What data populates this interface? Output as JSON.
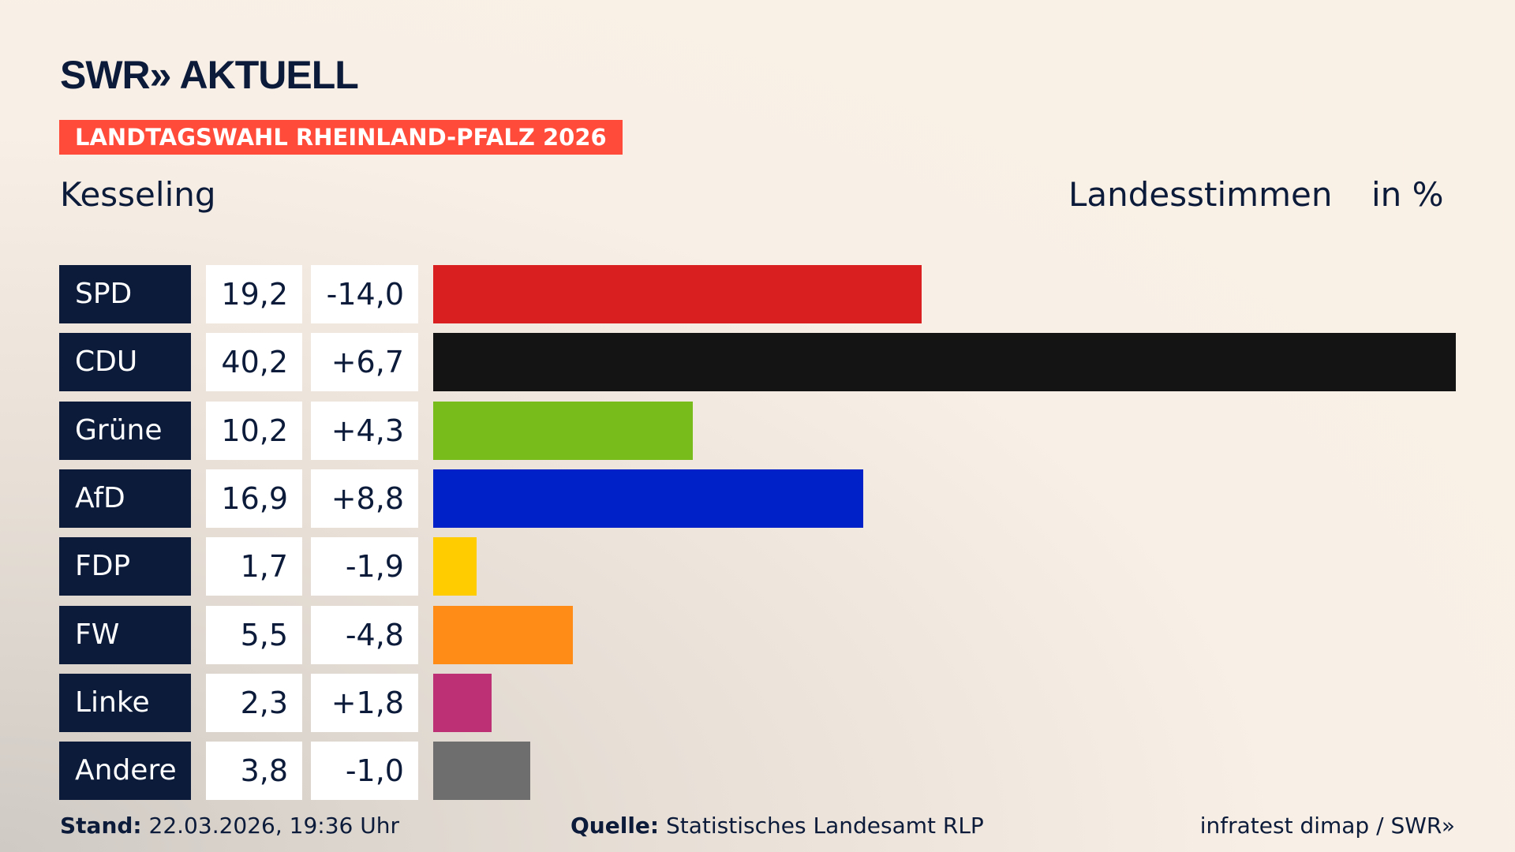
{
  "header": {
    "logo": "SWR» AKTUELL",
    "banner": "LANDTAGSWAHL RHEINLAND-PFALZ 2026",
    "location": "Kesseling",
    "measure": "Landesstimmen",
    "unit": "in %"
  },
  "chart_data": {
    "type": "bar",
    "orientation": "horizontal",
    "xlim": [
      0,
      40.2
    ],
    "categories": [
      "SPD",
      "CDU",
      "Grüne",
      "AfD",
      "FDP",
      "FW",
      "Linke",
      "Andere"
    ],
    "values": [
      19.2,
      40.2,
      10.2,
      16.9,
      1.7,
      5.5,
      2.3,
      3.8
    ],
    "value_labels": [
      "19,2",
      "40,2",
      "10,2",
      "16,9",
      "1,7",
      "5,5",
      "2,3",
      "3,8"
    ],
    "change_labels": [
      "-14,0",
      "+6,7",
      "+4,3",
      "+8,8",
      "-1,9",
      "-4,8",
      "+1,8",
      "-1,0"
    ],
    "changes": [
      -14.0,
      6.7,
      4.3,
      8.8,
      -1.9,
      -4.8,
      1.8,
      -1.0
    ],
    "colors": [
      "#d91f1f",
      "#141414",
      "#78bc1c",
      "#0021c8",
      "#ffcc00",
      "#ff8c16",
      "#be3075",
      "#6e6e6e"
    ]
  },
  "footer": {
    "stand_label": "Stand:",
    "stand": "22.03.2026, 19:36 Uhr",
    "source_label": "Quelle:",
    "source": "Statistisches Landesamt RLP",
    "credit": "infratest dimap / SWR»"
  }
}
